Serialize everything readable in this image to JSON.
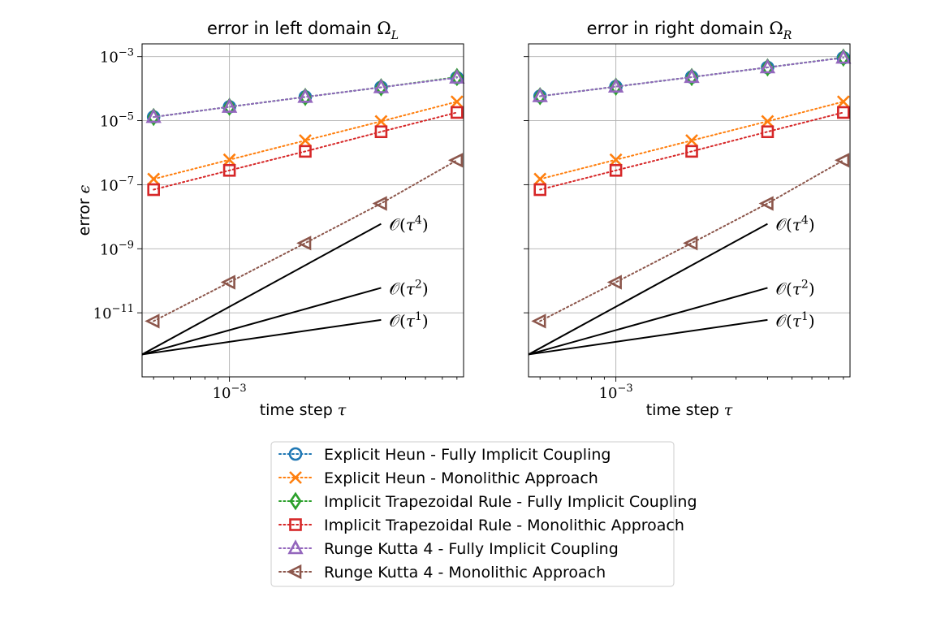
{
  "chart_data": [
    {
      "type": "line",
      "title": "error in left domain Ω_L",
      "title_text": "error in left domain ",
      "title_symbol": "Ω",
      "title_subscript": "L",
      "xlabel": "time step τ",
      "ylabel": "error ϵ",
      "xscale": "log",
      "yscale": "log",
      "xlim": [
        0.00045,
        0.0085
      ],
      "ylim": [
        1e-13,
        0.0025
      ],
      "grid": true,
      "x_ticks": [
        {
          "value": 0.001,
          "base": "10",
          "exp": "−3"
        }
      ],
      "y_ticks": [
        {
          "value": 0.001,
          "base": "10",
          "exp": "−3"
        },
        {
          "value": 1e-05,
          "base": "10",
          "exp": "−5"
        },
        {
          "value": 1e-07,
          "base": "10",
          "exp": "−7"
        },
        {
          "value": 1e-09,
          "base": "10",
          "exp": "−9"
        },
        {
          "value": 1e-11,
          "base": "10",
          "exp": "−11"
        }
      ],
      "x": [
        0.0005,
        0.001,
        0.002,
        0.004,
        0.008
      ],
      "series": [
        {
          "name": "Explicit Heun - Fully Implicit Coupling",
          "values": [
            1.3e-05,
            2.7e-05,
            5.5e-05,
            0.00011,
            0.00022
          ]
        },
        {
          "name": "Explicit Heun - Monolithic Approach",
          "values": [
            1.5e-07,
            6e-07,
            2.4e-06,
            9.5e-06,
            3.9e-05
          ]
        },
        {
          "name": "Implicit Trapezoidal Rule - Fully Implicit Coupling",
          "values": [
            1.3e-05,
            2.7e-05,
            5.5e-05,
            0.00011,
            0.00023
          ]
        },
        {
          "name": "Implicit Trapezoidal Rule - Monolithic Approach",
          "values": [
            7e-08,
            2.8e-07,
            1.1e-06,
            4.5e-06,
            1.8e-05
          ]
        },
        {
          "name": "Runge Kutta 4 - Fully Implicit Coupling",
          "values": [
            1.3e-05,
            2.7e-05,
            5.5e-05,
            0.00011,
            0.00022
          ]
        },
        {
          "name": "Runge Kutta 4 - Monolithic Approach",
          "values": [
            5.5e-12,
            9e-11,
            1.5e-09,
            2.6e-08,
            5.8e-07
          ]
        }
      ],
      "reference_lines": [
        {
          "label": "τ^4",
          "order": 4,
          "x": [
            0.00045,
            0.004
          ],
          "y": [
            5e-13,
            6e-09
          ]
        },
        {
          "label": "τ^2",
          "order": 2,
          "x": [
            0.00045,
            0.004
          ],
          "y": [
            5e-13,
            6e-11
          ]
        },
        {
          "label": "τ^1",
          "order": 1,
          "x": [
            0.00045,
            0.004
          ],
          "y": [
            5e-13,
            6e-12
          ]
        }
      ]
    },
    {
      "type": "line",
      "title": "error in right domain Ω_R",
      "title_text": "error in right domain ",
      "title_symbol": "Ω",
      "title_subscript": "R",
      "xlabel": "time step τ",
      "ylabel": "",
      "xscale": "log",
      "yscale": "log",
      "xlim": [
        0.00045,
        0.0085
      ],
      "ylim": [
        1e-13,
        0.0025
      ],
      "grid": true,
      "x_ticks": [
        {
          "value": 0.001,
          "base": "10",
          "exp": "−3"
        }
      ],
      "y_ticks": [
        {
          "value": 0.001,
          "base": "",
          "exp": ""
        },
        {
          "value": 1e-05,
          "base": "",
          "exp": ""
        },
        {
          "value": 1e-07,
          "base": "",
          "exp": ""
        },
        {
          "value": 1e-09,
          "base": "",
          "exp": ""
        },
        {
          "value": 1e-11,
          "base": "",
          "exp": ""
        }
      ],
      "x": [
        0.0005,
        0.001,
        0.002,
        0.004,
        0.008
      ],
      "series": [
        {
          "name": "Explicit Heun - Fully Implicit Coupling",
          "values": [
            5.8e-05,
            0.000115,
            0.00023,
            0.00046,
            0.00092
          ]
        },
        {
          "name": "Explicit Heun - Monolithic Approach",
          "values": [
            1.5e-07,
            6e-07,
            2.4e-06,
            9.5e-06,
            3.9e-05
          ]
        },
        {
          "name": "Implicit Trapezoidal Rule - Fully Implicit Coupling",
          "values": [
            5.8e-05,
            0.000115,
            0.00023,
            0.00046,
            0.00093
          ]
        },
        {
          "name": "Implicit Trapezoidal Rule - Monolithic Approach",
          "values": [
            7e-08,
            2.8e-07,
            1.1e-06,
            4.5e-06,
            1.8e-05
          ]
        },
        {
          "name": "Runge Kutta 4 - Fully Implicit Coupling",
          "values": [
            5.8e-05,
            0.000115,
            0.00023,
            0.00046,
            0.00092
          ]
        },
        {
          "name": "Runge Kutta 4 - Monolithic Approach",
          "values": [
            5.5e-12,
            9e-11,
            1.5e-09,
            2.6e-08,
            5.8e-07
          ]
        }
      ],
      "reference_lines": [
        {
          "label": "τ^4",
          "order": 4,
          "x": [
            0.00045,
            0.004
          ],
          "y": [
            5e-13,
            6e-09
          ]
        },
        {
          "label": "τ^2",
          "order": 2,
          "x": [
            0.00045,
            0.004
          ],
          "y": [
            5e-13,
            6e-11
          ]
        },
        {
          "label": "τ^1",
          "order": 1,
          "x": [
            0.00045,
            0.004
          ],
          "y": [
            5e-13,
            6e-12
          ]
        }
      ]
    }
  ],
  "series_styles": [
    {
      "color": "#1f77b4",
      "marker": "circle"
    },
    {
      "color": "#ff7f0e",
      "marker": "x"
    },
    {
      "color": "#2ca02c",
      "marker": "diamond"
    },
    {
      "color": "#d62728",
      "marker": "square"
    },
    {
      "color": "#9467bd",
      "marker": "triangle-up"
    },
    {
      "color": "#8c564b",
      "marker": "triangle-left"
    }
  ],
  "legend": {
    "placement": "bottom-center",
    "entries": [
      "Explicit Heun - Fully Implicit Coupling",
      "Explicit Heun - Monolithic Approach",
      "Implicit Trapezoidal Rule - Fully Implicit Coupling",
      "Implicit Trapezoidal Rule - Monolithic Approach",
      "Runge Kutta 4 - Fully Implicit Coupling",
      "Runge Kutta 4 - Monolithic Approach"
    ]
  }
}
